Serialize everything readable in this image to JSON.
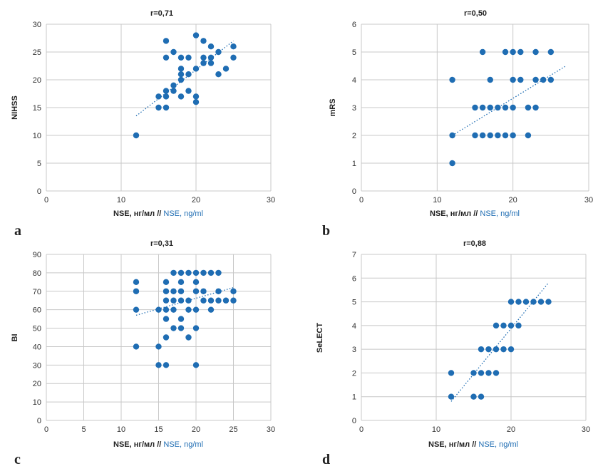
{
  "colors": {
    "points": "#1f6db3",
    "trend": "#1f6db3",
    "grid": "#c8c8c8"
  },
  "chart_data": [
    {
      "id": "a",
      "type": "scatter",
      "panel_label": "a",
      "title": "r=0,71",
      "ylabel": "NIHSS",
      "xlabel_ru": "NSE, нг/мл //",
      "xlabel_en": " NSE, ng/ml",
      "xlim": [
        0,
        30
      ],
      "ylim": [
        0,
        30
      ],
      "xticks": [
        0,
        10,
        20,
        30
      ],
      "yticks": [
        0,
        5,
        10,
        15,
        20,
        25,
        30
      ],
      "grid": "vertical and horizontal at ticks",
      "trendline": [
        [
          12,
          13.5
        ],
        [
          25,
          27
        ]
      ],
      "points": [
        [
          12,
          10
        ],
        [
          15,
          15
        ],
        [
          15,
          17
        ],
        [
          16,
          15
        ],
        [
          16,
          17
        ],
        [
          16,
          18
        ],
        [
          16,
          24
        ],
        [
          16,
          27
        ],
        [
          17,
          18
        ],
        [
          17,
          19
        ],
        [
          17,
          25
        ],
        [
          18,
          17
        ],
        [
          18,
          20
        ],
        [
          18,
          21
        ],
        [
          18,
          22
        ],
        [
          18,
          24
        ],
        [
          19,
          18
        ],
        [
          19,
          21
        ],
        [
          19,
          24
        ],
        [
          20,
          16
        ],
        [
          20,
          17
        ],
        [
          20,
          22
        ],
        [
          20,
          28
        ],
        [
          21,
          23
        ],
        [
          21,
          24
        ],
        [
          21,
          27
        ],
        [
          22,
          23
        ],
        [
          22,
          24
        ],
        [
          22,
          26
        ],
        [
          23,
          21
        ],
        [
          23,
          25
        ],
        [
          24,
          22
        ],
        [
          25,
          24
        ],
        [
          25,
          26
        ]
      ]
    },
    {
      "id": "b",
      "type": "scatter",
      "panel_label": "b",
      "title": "r=0,50",
      "ylabel": "mRS",
      "xlabel_ru": "NSE, нг/мл //",
      "xlabel_en": " NSE, ng/ml",
      "xlim": [
        0,
        30
      ],
      "ylim": [
        0,
        6
      ],
      "xticks": [
        0,
        10,
        20,
        30
      ],
      "yticks": [
        0,
        1,
        2,
        3,
        4,
        5,
        6
      ],
      "grid": "vertical and horizontal at ticks",
      "trendline": [
        [
          12,
          2.0
        ],
        [
          27,
          4.5
        ]
      ],
      "points": [
        [
          12,
          1
        ],
        [
          12,
          2
        ],
        [
          12,
          4
        ],
        [
          15,
          2
        ],
        [
          15,
          3
        ],
        [
          16,
          2
        ],
        [
          16,
          3
        ],
        [
          16,
          5
        ],
        [
          17,
          2
        ],
        [
          17,
          3
        ],
        [
          17,
          4
        ],
        [
          18,
          2
        ],
        [
          18,
          3
        ],
        [
          19,
          2
        ],
        [
          19,
          3
        ],
        [
          19,
          5
        ],
        [
          20,
          2
        ],
        [
          20,
          3
        ],
        [
          20,
          4
        ],
        [
          20,
          5
        ],
        [
          21,
          4
        ],
        [
          21,
          5
        ],
        [
          22,
          2
        ],
        [
          22,
          3
        ],
        [
          23,
          3
        ],
        [
          23,
          4
        ],
        [
          23,
          5
        ],
        [
          24,
          4
        ],
        [
          25,
          4
        ],
        [
          25,
          5
        ]
      ]
    },
    {
      "id": "c",
      "type": "scatter",
      "panel_label": "c",
      "title": "r=0,31",
      "ylabel": "BI",
      "xlabel_ru": "NSE, нг/мл //",
      "xlabel_en": " NSE, ng/ml",
      "xlim": [
        0,
        30
      ],
      "ylim": [
        0,
        90
      ],
      "xticks": [
        0,
        5,
        10,
        15,
        20,
        25,
        30
      ],
      "yticks": [
        0,
        10,
        20,
        30,
        40,
        50,
        60,
        70,
        80,
        90
      ],
      "grid": "vertical and horizontal at ticks",
      "trendline": [
        [
          12,
          57
        ],
        [
          25,
          72
        ]
      ],
      "points": [
        [
          12,
          40
        ],
        [
          12,
          60
        ],
        [
          12,
          70
        ],
        [
          12,
          75
        ],
        [
          15,
          30
        ],
        [
          15,
          40
        ],
        [
          15,
          60
        ],
        [
          16,
          30
        ],
        [
          16,
          45
        ],
        [
          16,
          55
        ],
        [
          16,
          60
        ],
        [
          16,
          65
        ],
        [
          16,
          70
        ],
        [
          16,
          75
        ],
        [
          17,
          50
        ],
        [
          17,
          60
        ],
        [
          17,
          65
        ],
        [
          17,
          70
        ],
        [
          17,
          80
        ],
        [
          18,
          50
        ],
        [
          18,
          55
        ],
        [
          18,
          65
        ],
        [
          18,
          70
        ],
        [
          18,
          75
        ],
        [
          18,
          80
        ],
        [
          19,
          45
        ],
        [
          19,
          60
        ],
        [
          19,
          65
        ],
        [
          19,
          80
        ],
        [
          20,
          30
        ],
        [
          20,
          50
        ],
        [
          20,
          60
        ],
        [
          20,
          70
        ],
        [
          20,
          75
        ],
        [
          20,
          80
        ],
        [
          21,
          65
        ],
        [
          21,
          70
        ],
        [
          21,
          80
        ],
        [
          22,
          60
        ],
        [
          22,
          65
        ],
        [
          22,
          80
        ],
        [
          23,
          65
        ],
        [
          23,
          70
        ],
        [
          23,
          80
        ],
        [
          24,
          65
        ],
        [
          25,
          65
        ],
        [
          25,
          70
        ]
      ]
    },
    {
      "id": "d",
      "type": "scatter",
      "panel_label": "d",
      "title": "r=0,88",
      "ylabel": "SeLECT",
      "xlabel_ru": "NSE, нг/мл //",
      "xlabel_en": " NSE, ng/ml",
      "xlim": [
        0,
        30
      ],
      "ylim": [
        0,
        7
      ],
      "xticks": [
        0,
        10,
        20,
        30
      ],
      "yticks": [
        0,
        1,
        2,
        3,
        4,
        5,
        6,
        7
      ],
      "grid": "vertical and horizontal at ticks",
      "trendline": [
        [
          12,
          0.8
        ],
        [
          25,
          5.8
        ]
      ],
      "points": [
        [
          12,
          1
        ],
        [
          12,
          2
        ],
        [
          15,
          1
        ],
        [
          15,
          2
        ],
        [
          16,
          1
        ],
        [
          16,
          2
        ],
        [
          16,
          3
        ],
        [
          17,
          2
        ],
        [
          17,
          3
        ],
        [
          18,
          2
        ],
        [
          18,
          3
        ],
        [
          18,
          4
        ],
        [
          19,
          3
        ],
        [
          19,
          4
        ],
        [
          20,
          3
        ],
        [
          20,
          4
        ],
        [
          20,
          5
        ],
        [
          21,
          4
        ],
        [
          21,
          5
        ],
        [
          22,
          5
        ],
        [
          23,
          5
        ],
        [
          24,
          5
        ],
        [
          25,
          5
        ]
      ]
    }
  ]
}
